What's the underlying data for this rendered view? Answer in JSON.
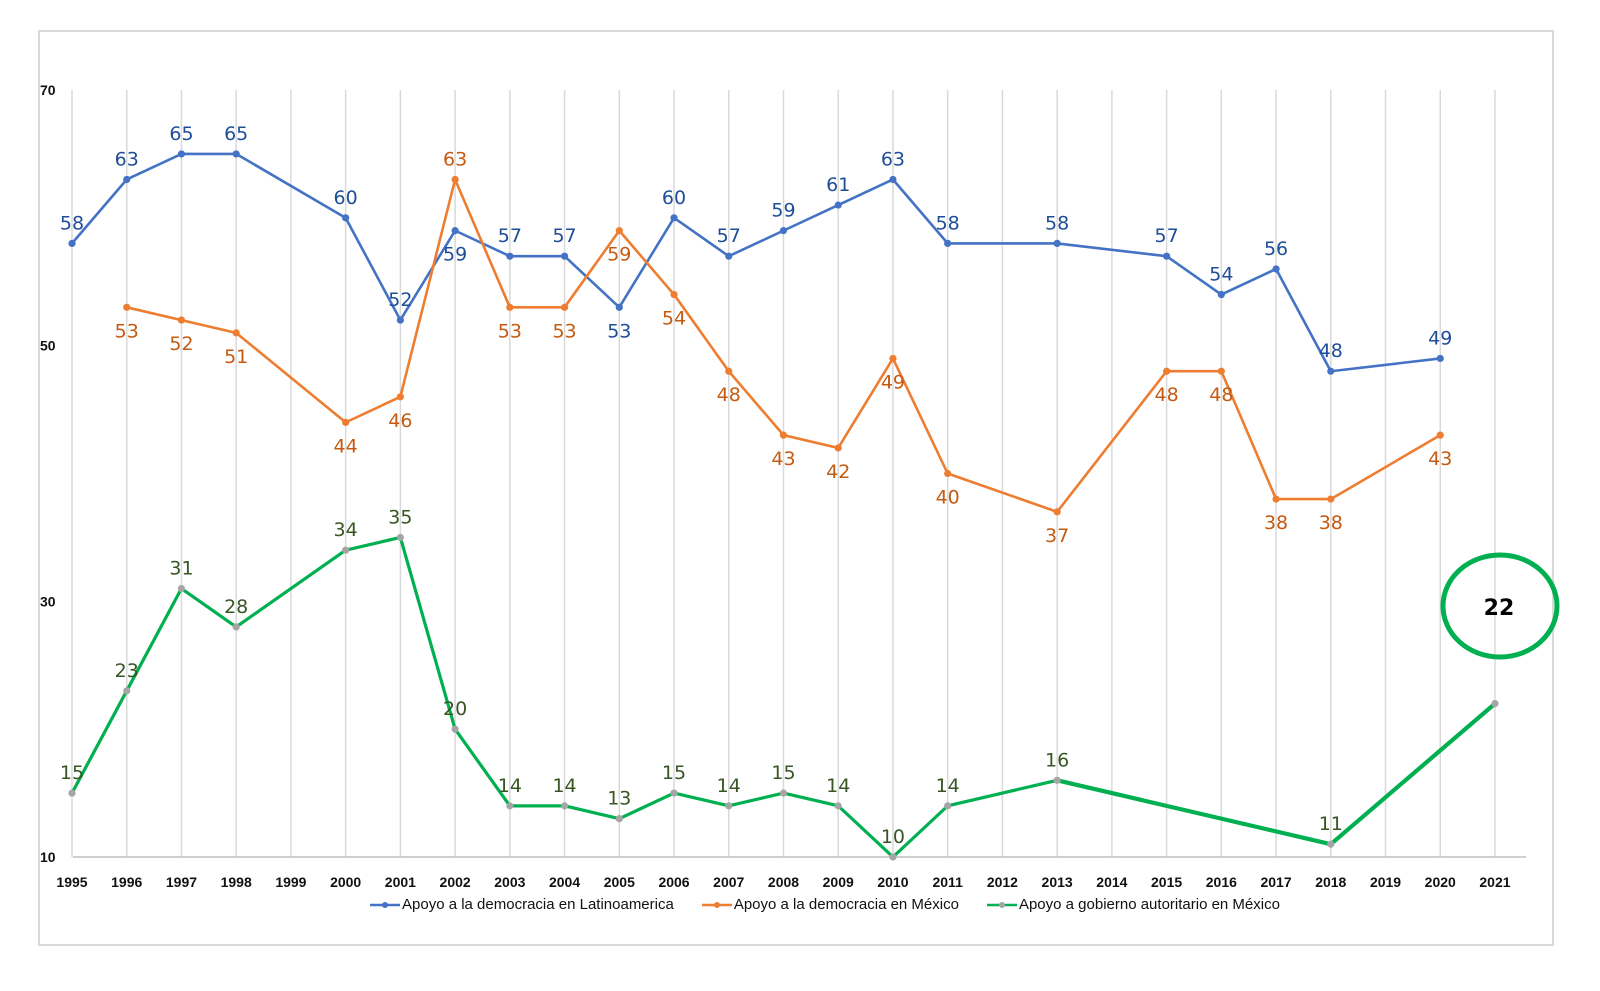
{
  "chart_data": {
    "type": "line",
    "title": "",
    "xlabel": "",
    "ylabel": "",
    "ylim": [
      10,
      70
    ],
    "yticks": [
      "70",
      "50",
      "30",
      "10"
    ],
    "ytick_values": [
      70,
      50,
      30,
      10
    ],
    "grid": "vertical",
    "legend_position": "bottom",
    "categories": [
      "1995",
      "1996",
      "1997",
      "1998",
      "1999",
      "2000",
      "2001",
      "2002",
      "2003",
      "2004",
      "2005",
      "2006",
      "2007",
      "2008",
      "2009",
      "2010",
      "2011",
      "2012",
      "2013",
      "2014",
      "2015",
      "2016",
      "2017",
      "2018",
      "2019",
      "2020",
      "2021"
    ],
    "series": [
      {
        "name": "Apoyo a la democracia en Latinoamerica",
        "line_color": "#4472C4",
        "label_color": "#1F4E99",
        "values": [
          58,
          63,
          65,
          65,
          null,
          60,
          52,
          59,
          57,
          57,
          53,
          60,
          57,
          59,
          61,
          63,
          58,
          null,
          58,
          null,
          57,
          54,
          56,
          48,
          null,
          49,
          null
        ]
      },
      {
        "name": "Apoyo a la democracia en México",
        "line_color": "#ED7D31",
        "label_color": "#C55A11",
        "values": [
          null,
          53,
          52,
          51,
          null,
          44,
          46,
          63,
          53,
          53,
          59,
          54,
          48,
          43,
          42,
          49,
          40,
          null,
          37,
          null,
          48,
          48,
          38,
          38,
          null,
          43,
          null
        ]
      },
      {
        "name": "Apoyo a gobierno autoritario en México",
        "line_color": "#00B050",
        "label_color": "#375623",
        "marker_color": "#A5A5A5",
        "values": [
          15,
          23,
          31,
          28,
          null,
          34,
          35,
          20,
          14,
          14,
          13,
          15,
          14,
          15,
          14,
          10,
          14,
          null,
          16,
          null,
          null,
          null,
          null,
          11,
          null,
          null,
          22
        ]
      }
    ],
    "annotation": {
      "text": "22",
      "category": "2021",
      "style": "circle",
      "color": "#00B050"
    }
  }
}
